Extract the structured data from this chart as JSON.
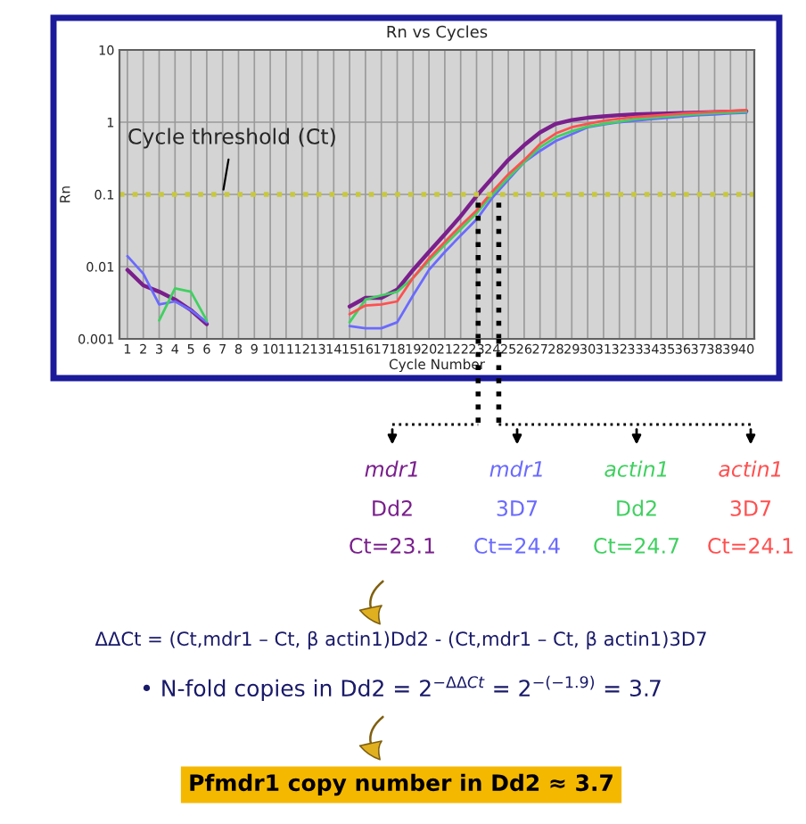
{
  "chart_data": {
    "type": "line",
    "title": "Rn vs Cycles",
    "xlabel": "Cycle Number",
    "ylabel": "Rn",
    "x": [
      1,
      2,
      3,
      4,
      5,
      6,
      7,
      8,
      9,
      10,
      11,
      12,
      13,
      14,
      15,
      16,
      17,
      18,
      19,
      20,
      21,
      22,
      23,
      24,
      25,
      26,
      27,
      28,
      29,
      30,
      31,
      32,
      33,
      34,
      35,
      36,
      37,
      38,
      39,
      40
    ],
    "series": [
      {
        "color": "#7a1f8c",
        "values": [
          0.009,
          0.0055,
          0.0045,
          0.0035,
          0.0025,
          0.0016,
          null,
          null,
          null,
          null,
          null,
          null,
          null,
          null,
          0.0028,
          0.0037,
          0.0037,
          0.0048,
          0.009,
          0.016,
          0.028,
          0.05,
          0.095,
          0.17,
          0.3,
          0.48,
          0.72,
          0.95,
          1.07,
          1.15,
          1.2,
          1.25,
          1.28,
          1.3,
          1.32,
          1.34,
          1.36,
          1.38,
          1.4,
          1.42
        ]
      },
      {
        "color": "#6a6aff",
        "values": [
          0.014,
          0.008,
          0.003,
          0.0033,
          0.0025,
          0.0017,
          null,
          null,
          null,
          null,
          null,
          null,
          null,
          null,
          0.0015,
          0.0014,
          0.0014,
          0.0017,
          0.004,
          0.009,
          0.016,
          0.027,
          0.045,
          0.09,
          0.16,
          0.28,
          0.4,
          0.55,
          0.68,
          0.85,
          0.93,
          1.0,
          1.05,
          1.1,
          1.15,
          1.2,
          1.25,
          1.28,
          1.32,
          1.35
        ]
      },
      {
        "color": "#40d060",
        "values": [
          null,
          null,
          0.0018,
          0.005,
          0.0045,
          0.0018,
          null,
          null,
          null,
          null,
          null,
          null,
          null,
          null,
          0.0017,
          0.0035,
          0.004,
          0.0045,
          0.007,
          0.012,
          0.02,
          0.033,
          0.055,
          0.1,
          0.17,
          0.28,
          0.45,
          0.62,
          0.75,
          0.87,
          0.95,
          1.02,
          1.1,
          1.15,
          1.2,
          1.25,
          1.3,
          1.33,
          1.36,
          1.4
        ]
      },
      {
        "color": "#ff5050",
        "values": [
          null,
          null,
          null,
          null,
          null,
          null,
          null,
          null,
          null,
          null,
          null,
          null,
          null,
          null,
          0.0022,
          0.0029,
          0.003,
          0.0033,
          0.007,
          0.013,
          0.022,
          0.037,
          0.06,
          0.11,
          0.19,
          0.3,
          0.5,
          0.7,
          0.85,
          0.95,
          1.05,
          1.12,
          1.18,
          1.22,
          1.27,
          1.32,
          1.36,
          1.4,
          1.43,
          1.47
        ]
      }
    ],
    "log": "y",
    "xlim": [
      0.5,
      40.5
    ],
    "ylim": [
      0.001,
      10
    ],
    "xticks": [
      1,
      2,
      3,
      4,
      5,
      6,
      7,
      8,
      9,
      10,
      11,
      12,
      13,
      14,
      15,
      16,
      17,
      18,
      19,
      20,
      21,
      22,
      23,
      24,
      25,
      26,
      27,
      28,
      29,
      30,
      31,
      32,
      33,
      34,
      35,
      36,
      37,
      38,
      39,
      40
    ],
    "yticks": [
      0.001,
      0.01,
      0.1,
      1,
      10
    ],
    "grid": true,
    "legend": false,
    "marker": "none",
    "line_style": "solid",
    "ref_lines": [
      {
        "axis": "y",
        "value": 0.1,
        "label": "Cycle threshold (Ct)",
        "color": "#c8c840",
        "line_style": "dotted"
      },
      {
        "axis": "x",
        "value": 23.1,
        "line_style": "dotted",
        "color": "#000000"
      },
      {
        "axis": "x",
        "value": 24.4,
        "line_style": "dotted",
        "color": "#000000"
      }
    ],
    "annotations": [
      "mdr1",
      "mdr1",
      "actin1",
      "actin1",
      "Dd2",
      "3D7",
      "Dd2",
      "3D7",
      "Ct=23.1",
      "Ct=24.4",
      "Ct=24.7",
      "Ct=24.1",
      "ΔΔCt = (Ct,mdr1 – Ct, β actin1)Dd2 - (Ct,mdr1 – Ct, β actin1)3D7",
      "• N-fold copies in Dd2 = 2$^{−ΔΔCt}$ = 2$^{−(−1.9)}$ = 3.7",
      "Pfmdr1 copy number in Dd2 ≈ 3.7"
    ]
  }
}
